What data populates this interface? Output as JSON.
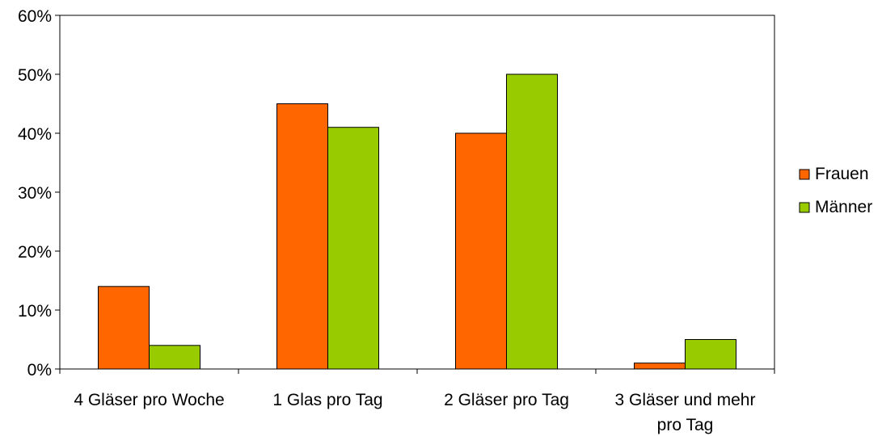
{
  "chart_data": {
    "type": "bar",
    "categories": [
      [
        "4 Gläser pro Woche"
      ],
      [
        "1 Glas pro Tag"
      ],
      [
        "2 Gläser pro Tag"
      ],
      [
        "3 Gläser und mehr",
        "pro Tag"
      ]
    ],
    "series": [
      {
        "name": "Frauen",
        "color": "#FF6600",
        "values": [
          14,
          45,
          40,
          1
        ]
      },
      {
        "name": "Männer",
        "color": "#99CC00",
        "values": [
          4,
          41,
          50,
          5
        ]
      }
    ],
    "ylim": [
      0,
      60
    ],
    "yticks": [
      0,
      10,
      20,
      30,
      40,
      50,
      60
    ],
    "ytick_labels": [
      "0%",
      "10%",
      "20%",
      "30%",
      "40%",
      "50%",
      "60%"
    ],
    "grid": false,
    "legend_position": "right",
    "title": "",
    "xlabel": "",
    "ylabel": ""
  }
}
